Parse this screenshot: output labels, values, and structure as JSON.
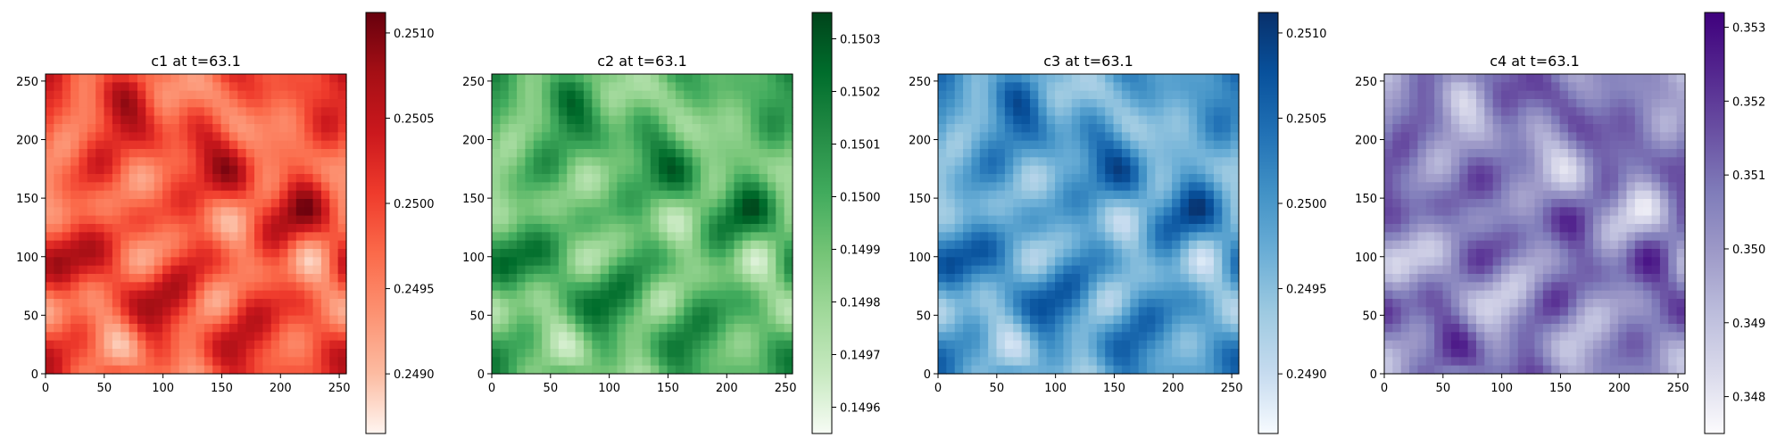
{
  "figure": {
    "panels": [
      {
        "title": "c1 at t=63.1",
        "colormap": "Reds",
        "cmap_colors": [
          "#fff5f0",
          "#fcbba1",
          "#fc9272",
          "#fb6a4a",
          "#ef3b2c",
          "#cb181d",
          "#a50f15",
          "#67000d"
        ],
        "colorbar": {
          "min": 0.24865,
          "max": 0.25112,
          "ticks": [
            0.249,
            0.2495,
            0.25,
            0.2505,
            0.251
          ],
          "tick_labels": [
            "0.2490",
            "0.2495",
            "0.2500",
            "0.2505",
            "0.2510"
          ]
        },
        "x_ticks": [
          0,
          50,
          100,
          150,
          200,
          250
        ],
        "y_ticks": [
          0,
          50,
          100,
          150,
          200,
          250
        ]
      },
      {
        "title": "c2 at t=63.1",
        "colormap": "Greens",
        "cmap_colors": [
          "#f7fcf5",
          "#c7e9c0",
          "#a1d99b",
          "#74c476",
          "#41ab5d",
          "#238b45",
          "#006d2c",
          "#00441b"
        ],
        "colorbar": {
          "min": 0.14955,
          "max": 0.15035,
          "ticks": [
            0.1496,
            0.1497,
            0.1498,
            0.1499,
            0.15,
            0.1501,
            0.1502,
            0.1503
          ],
          "tick_labels": [
            "0.1496",
            "0.1497",
            "0.1498",
            "0.1499",
            "0.1500",
            "0.1501",
            "0.1502",
            "0.1503"
          ]
        },
        "x_ticks": [
          0,
          50,
          100,
          150,
          200,
          250
        ],
        "y_ticks": [
          0,
          50,
          100,
          150,
          200,
          250
        ]
      },
      {
        "title": "c3 at t=63.1",
        "colormap": "Blues",
        "cmap_colors": [
          "#f7fbff",
          "#c6dbef",
          "#9ecae1",
          "#6baed6",
          "#4292c6",
          "#2171b5",
          "#08519c",
          "#08306b"
        ],
        "colorbar": {
          "min": 0.24865,
          "max": 0.25112,
          "ticks": [
            0.249,
            0.2495,
            0.25,
            0.2505,
            0.251
          ],
          "tick_labels": [
            "0.2490",
            "0.2495",
            "0.2500",
            "0.2505",
            "0.2510"
          ]
        },
        "x_ticks": [
          0,
          50,
          100,
          150,
          200,
          250
        ],
        "y_ticks": [
          0,
          50,
          100,
          150,
          200,
          250
        ]
      },
      {
        "title": "c4 at t=63.1",
        "colormap": "Purples",
        "cmap_colors": [
          "#fcfbfd",
          "#dadaeb",
          "#bcbddc",
          "#9e9ac8",
          "#807dba",
          "#6a51a3",
          "#54278f",
          "#3f007d"
        ],
        "colorbar": {
          "min": 0.3475,
          "max": 0.3532,
          "ticks": [
            0.348,
            0.349,
            0.35,
            0.351,
            0.352,
            0.353
          ],
          "tick_labels": [
            "0.348",
            "0.349",
            "0.350",
            "0.351",
            "0.352",
            "0.353"
          ]
        },
        "x_ticks": [
          0,
          50,
          100,
          150,
          200,
          250
        ],
        "y_ticks": [
          0,
          50,
          100,
          150,
          200,
          250
        ]
      }
    ]
  },
  "chart_data": [
    {
      "type": "heatmap",
      "title": "c1 at t=63.1",
      "xlim": [
        0,
        255
      ],
      "ylim": [
        0,
        255
      ],
      "grid": false,
      "colormap": "Reds",
      "colorbar_range": [
        0.24865,
        0.25112
      ]
    },
    {
      "type": "heatmap",
      "title": "c2 at t=63.1",
      "xlim": [
        0,
        255
      ],
      "ylim": [
        0,
        255
      ],
      "grid": false,
      "colormap": "Greens",
      "colorbar_range": [
        0.14955,
        0.15035
      ]
    },
    {
      "type": "heatmap",
      "title": "c3 at t=63.1",
      "xlim": [
        0,
        255
      ],
      "ylim": [
        0,
        255
      ],
      "grid": false,
      "colormap": "Blues",
      "colorbar_range": [
        0.24865,
        0.25112
      ]
    },
    {
      "type": "heatmap",
      "title": "c4 at t=63.1",
      "xlim": [
        0,
        255
      ],
      "ylim": [
        0,
        255
      ],
      "grid": false,
      "colormap": "Purples",
      "colorbar_range": [
        0.3475,
        0.3532
      ]
    }
  ]
}
